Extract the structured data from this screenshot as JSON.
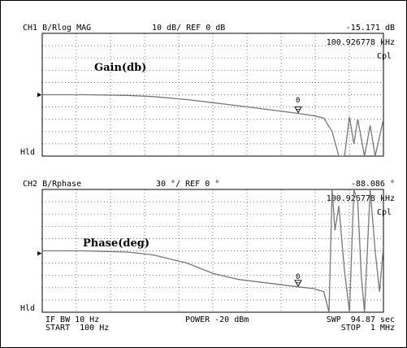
{
  "ch1": {
    "channel": "CH1 B/R",
    "format": "log MAG",
    "scale": "10 dB/ REF 0 dB",
    "marker_value": "-15.171 dB",
    "marker_freq": "100.926778 kHz",
    "cpl": "Cpl",
    "hld": "Hld",
    "annotation": "Gain(db)",
    "ref_pointer": "▶",
    "marker_number": "0"
  },
  "ch2": {
    "channel": "CH2 B/R",
    "format": "phase",
    "scale": "30 °/ REF 0 °",
    "marker_value": "-88.086 °",
    "marker_freq": "100.926778 kHz",
    "cpl": "Cpl",
    "hld": "Hld",
    "annotation": "Phase(deg)",
    "ref_pointer": "▶",
    "marker_number": "0"
  },
  "footer": {
    "if_bw": "IF BW 10 Hz",
    "start": "START  100 Hz",
    "power": "POWER -20 dBm",
    "sweep": "SWP  94.87 sec",
    "stop": "STOP  1 MHz"
  },
  "colors": {
    "background": "#ffffff",
    "trace": "#777777",
    "grid": "#444444",
    "frame": "#000000"
  },
  "chart_data": [
    {
      "type": "line",
      "title": "CH1 B/R log MAG",
      "xlabel": "",
      "ylabel": "",
      "x_scale": "log",
      "xlim": [
        100,
        1000000
      ],
      "ylim": [
        -50,
        50
      ],
      "grid": true,
      "series": [
        {
          "name": "Gain(db)",
          "x": [
            100,
            300,
            1000,
            2000,
            5000,
            10000,
            20000,
            50000,
            100000,
            150000,
            200000,
            250000,
            300000,
            350000,
            400000,
            450000,
            500000,
            600000,
            700000,
            800000,
            1000000
          ],
          "y": [
            0,
            0,
            -0.5,
            -1.5,
            -4,
            -6.5,
            -9,
            -12.5,
            -15.2,
            -17,
            -19,
            -30,
            -50,
            -50,
            -18,
            -40,
            -20,
            -50,
            -25,
            -50,
            -20
          ]
        }
      ]
    },
    {
      "type": "line",
      "title": "CH2 B/R phase",
      "xlabel": "",
      "ylabel": "",
      "x_scale": "log",
      "xlim": [
        100,
        1000000
      ],
      "ylim": [
        -150,
        150
      ],
      "grid": true,
      "series": [
        {
          "name": "Phase(deg)",
          "x": [
            100,
            300,
            1000,
            2000,
            5000,
            10000,
            20000,
            50000,
            100000,
            150000,
            200000,
            230000,
            250000,
            270000,
            300000,
            350000,
            400000,
            450000,
            500000,
            550000,
            600000,
            700000,
            800000,
            900000,
            1000000
          ],
          "y": [
            0,
            0,
            -3,
            -10,
            -30,
            -55,
            -70,
            -80,
            -88,
            -92,
            -100,
            -150,
            150,
            50,
            110,
            -50,
            -150,
            150,
            120,
            -60,
            -150,
            150,
            0,
            -100,
            10
          ]
        }
      ]
    }
  ]
}
